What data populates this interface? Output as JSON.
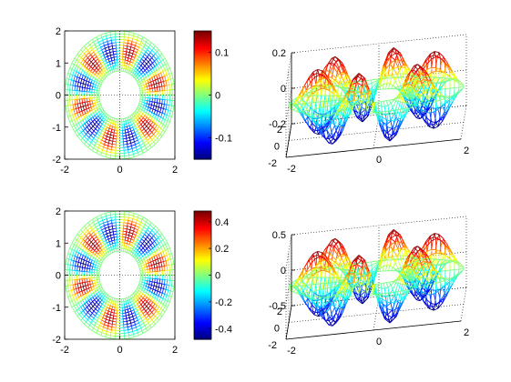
{
  "chart_data": [
    {
      "type": "surface-mesh-2d",
      "view": "top",
      "xlim": [
        -2,
        2
      ],
      "ylim": [
        -2,
        2
      ],
      "xticks": [
        "-2",
        "0",
        "2"
      ],
      "yticks": [
        "-2",
        "-1",
        "0",
        "1",
        "2"
      ],
      "inner_radius": 0.75,
      "outer_radius": 2.0,
      "angular_lobes": 6,
      "colorbar": {
        "min": -0.15,
        "max": 0.15,
        "ticks": [
          "0.1",
          "0",
          "-0.1"
        ],
        "tick_values": [
          0.1,
          0,
          -0.1
        ]
      },
      "colormap": "jet"
    },
    {
      "type": "surface-mesh-3d",
      "xlim": [
        -2,
        2
      ],
      "ylim": [
        -2,
        2
      ],
      "zlim": [
        -0.2,
        0.2
      ],
      "xticks": [
        "-2",
        "0",
        "2"
      ],
      "yticks": [
        "-2",
        "0",
        "2"
      ],
      "zticks": [
        "0.2",
        "0",
        "-0.2"
      ],
      "z_amplitude": 0.2,
      "grid": true,
      "colormap": "jet"
    },
    {
      "type": "surface-mesh-2d",
      "view": "top",
      "xlim": [
        -2,
        2
      ],
      "ylim": [
        -2,
        2
      ],
      "xticks": [
        "-2",
        "0",
        "2"
      ],
      "yticks": [
        "-2",
        "-1",
        "0",
        "1",
        "2"
      ],
      "inner_radius": 0.75,
      "outer_radius": 2.0,
      "angular_lobes": 6,
      "colorbar": {
        "min": -0.48,
        "max": 0.48,
        "ticks": [
          "0.4",
          "0.2",
          "0",
          "-0.2",
          "-0.4"
        ],
        "tick_values": [
          0.4,
          0.2,
          0,
          -0.2,
          -0.4
        ]
      },
      "colormap": "jet"
    },
    {
      "type": "surface-mesh-3d",
      "xlim": [
        -2,
        2
      ],
      "ylim": [
        -2,
        2
      ],
      "zlim": [
        -0.5,
        0.5
      ],
      "xticks": [
        "-2",
        "0",
        "2"
      ],
      "yticks": [
        "-2",
        "0",
        "2"
      ],
      "zticks": [
        "0.5",
        "0",
        "-0.5"
      ],
      "z_amplitude": 0.5,
      "grid": true,
      "colormap": "jet"
    }
  ]
}
